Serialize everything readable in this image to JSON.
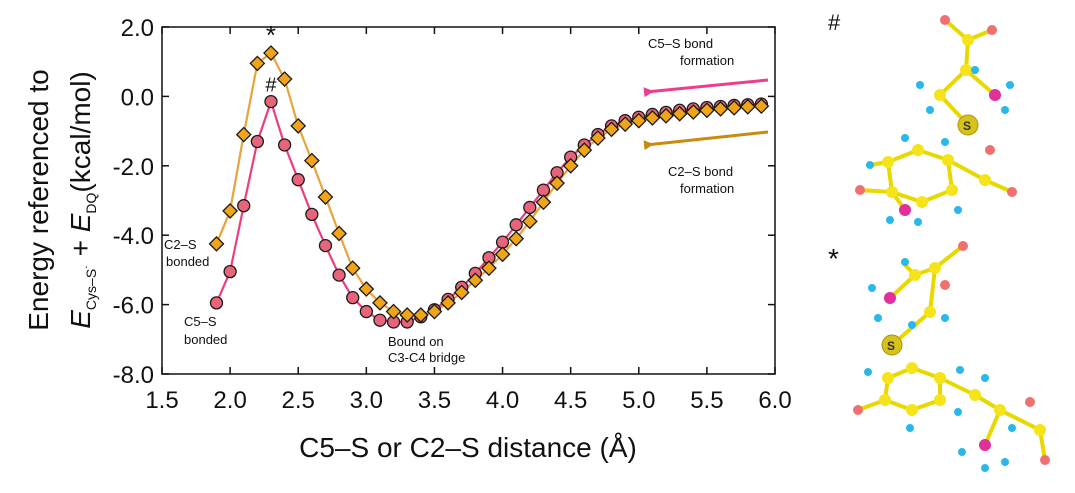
{
  "chart_data": {
    "type": "scatter",
    "xlabel": "C5–S or C2–S distance (Å)",
    "ylabel": {
      "line1": "Energy referenced to",
      "E1": "E",
      "sub1": "Cys–S˙",
      "plus": " + ",
      "E2": "E",
      "sub2": "DQ",
      "units": "(kcal/mol)"
    },
    "xlim": [
      1.5,
      6.0
    ],
    "ylim": [
      -8.0,
      2.0
    ],
    "xticks": [
      "1.5",
      "2.0",
      "2.5",
      "3.0",
      "3.5",
      "4.0",
      "4.5",
      "5.0",
      "5.5",
      "6.0"
    ],
    "yticks": [
      "2.0",
      "0.0",
      "-2.0",
      "-4.0",
      "-6.0",
      "-8.0"
    ],
    "series": [
      {
        "name": "C2–S",
        "marker": "diamond",
        "color": "#f0a417",
        "line_color": "#e8a43c",
        "x": [
          1.9,
          2.0,
          2.1,
          2.2,
          2.3,
          2.4,
          2.5,
          2.6,
          2.7,
          2.8,
          2.9,
          3.0,
          3.1,
          3.2,
          3.3,
          3.4,
          3.5,
          3.6,
          3.7,
          3.8,
          3.9,
          4.0,
          4.1,
          4.2,
          4.3,
          4.4,
          4.5,
          4.6,
          4.7,
          4.8,
          4.9,
          5.0,
          5.1,
          5.2,
          5.3,
          5.4,
          5.5,
          5.6,
          5.7,
          5.8,
          5.9
        ],
        "y": [
          -4.25,
          -3.3,
          -1.1,
          0.95,
          1.25,
          0.5,
          -0.85,
          -1.85,
          -2.9,
          -3.95,
          -4.95,
          -5.55,
          -5.95,
          -6.2,
          -6.3,
          -6.3,
          -6.2,
          -5.95,
          -5.65,
          -5.3,
          -4.95,
          -4.55,
          -4.1,
          -3.6,
          -3.05,
          -2.5,
          -2.0,
          -1.55,
          -1.2,
          -0.95,
          -0.8,
          -0.7,
          -0.62,
          -0.56,
          -0.5,
          -0.45,
          -0.4,
          -0.36,
          -0.33,
          -0.3,
          -0.28
        ]
      },
      {
        "name": "C5–S",
        "marker": "circle",
        "color": "#e8647a",
        "line_color": "#ee3d7c",
        "x": [
          1.9,
          2.0,
          2.1,
          2.2,
          2.3,
          2.4,
          2.5,
          2.6,
          2.7,
          2.8,
          2.9,
          3.0,
          3.1,
          3.2,
          3.3,
          3.4,
          3.5,
          3.6,
          3.7,
          3.8,
          3.9,
          4.0,
          4.1,
          4.2,
          4.3,
          4.4,
          4.5,
          4.6,
          4.7,
          4.8,
          4.9,
          5.0,
          5.1,
          5.2,
          5.3,
          5.4,
          5.5,
          5.6,
          5.7,
          5.8,
          5.9
        ],
        "y": [
          -5.95,
          -5.05,
          -3.15,
          -1.3,
          -0.15,
          -1.4,
          -2.4,
          -3.4,
          -4.3,
          -5.15,
          -5.8,
          -6.2,
          -6.45,
          -6.5,
          -6.5,
          -6.35,
          -6.15,
          -5.85,
          -5.5,
          -5.1,
          -4.65,
          -4.2,
          -3.7,
          -3.2,
          -2.7,
          -2.2,
          -1.75,
          -1.4,
          -1.1,
          -0.85,
          -0.7,
          -0.6,
          -0.52,
          -0.46,
          -0.4,
          -0.36,
          -0.32,
          -0.29,
          -0.26,
          -0.24,
          -0.22
        ]
      }
    ],
    "peak_markers": [
      {
        "symbol": "*",
        "series": "C2–S",
        "x": 2.3,
        "y": 1.25
      },
      {
        "symbol": "#",
        "series": "C5–S",
        "x": 2.3,
        "y": -0.15
      }
    ],
    "annotations": [
      {
        "id": "c5s-bond-formation",
        "lines": [
          "C5–S bond",
          "formation"
        ],
        "arrow_color": "#ee3d8c"
      },
      {
        "id": "c2s-bond-formation",
        "lines": [
          "C2–S bond",
          "formation"
        ],
        "arrow_color": "#c98a10"
      },
      {
        "id": "c2s-bonded",
        "lines": [
          "C2–S",
          "bonded"
        ]
      },
      {
        "id": "c5s-bonded",
        "lines": [
          "C5–S",
          "bonded"
        ]
      },
      {
        "id": "bound-on-bridge",
        "lines": [
          "Bound on",
          "C3-C4 bridge"
        ]
      }
    ]
  },
  "structures": {
    "top_label": "#",
    "bottom_label": "*",
    "sulfur_label": "S",
    "atom_colors": {
      "carbon": "#f5e41a",
      "hydrogen": "#2ab8e8",
      "oxygen": "#f07070",
      "nitrogen": "#e0309a",
      "bond": "#e8d800"
    }
  }
}
